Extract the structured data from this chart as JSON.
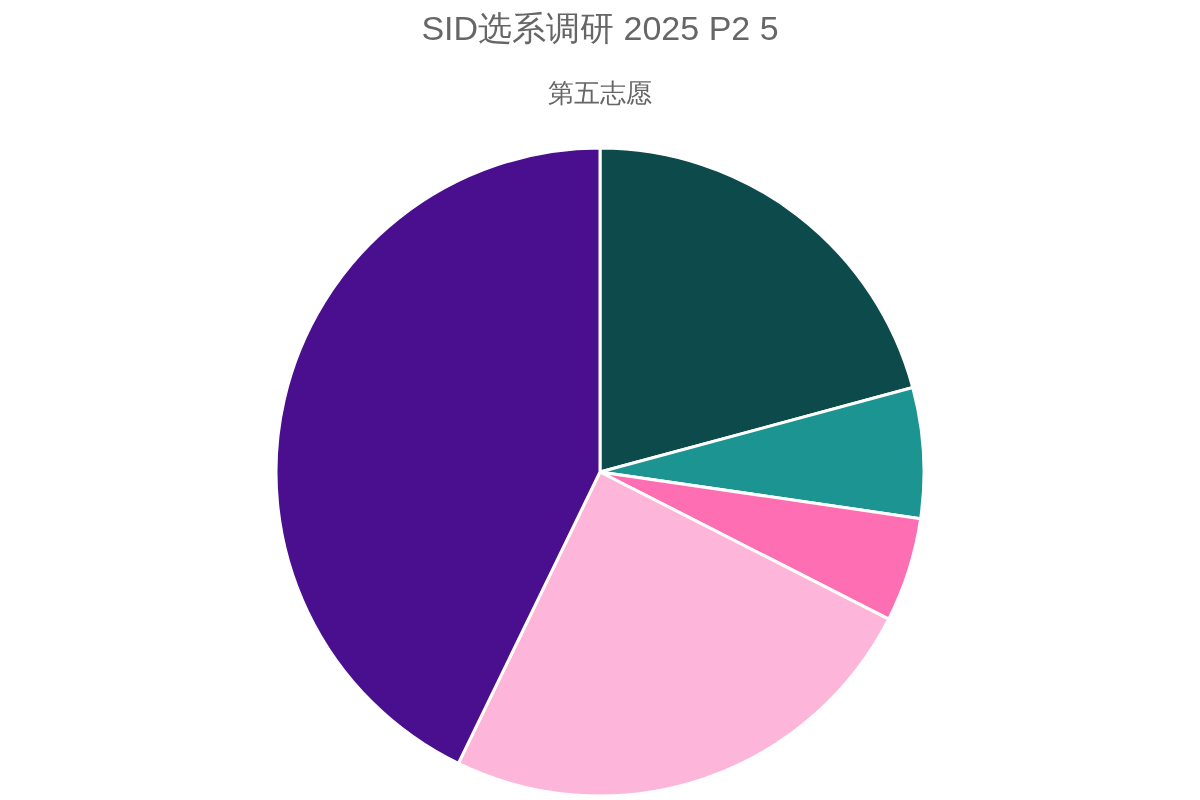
{
  "chart_data": {
    "type": "pie",
    "title": "SID选系调研 2025 P2 5",
    "subtitle": "第五志愿",
    "categories": [
      null,
      null,
      null,
      null,
      null
    ],
    "values": [
      20.8,
      6.5,
      5.2,
      24.7,
      42.8
    ],
    "colors": [
      "#0c4a4b",
      "#1c9491",
      "#fd6eb3",
      "#fdb5da",
      "#4a0f8e"
    ]
  }
}
